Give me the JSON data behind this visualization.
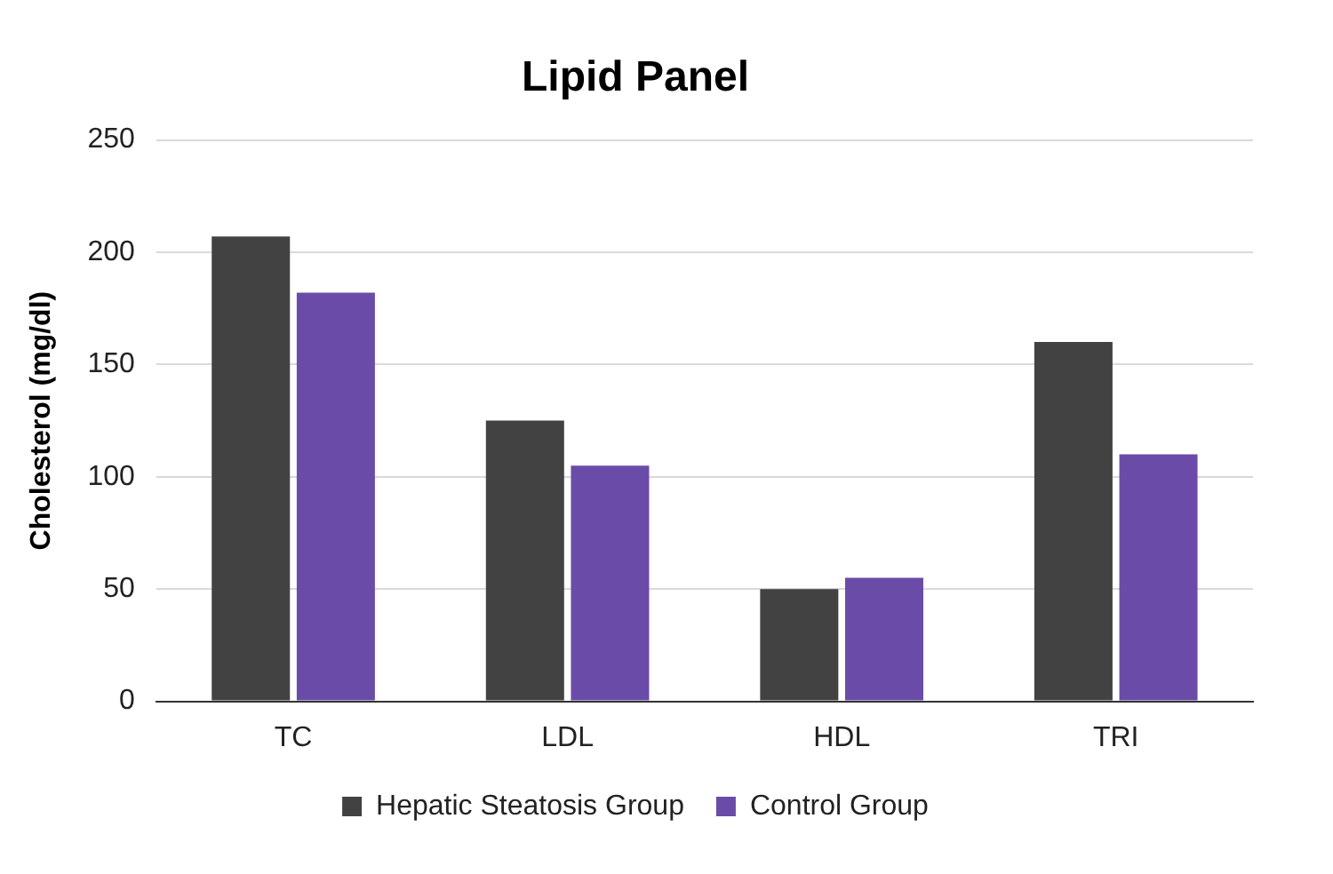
{
  "chart_data": {
    "type": "bar",
    "title": "Lipid Panel",
    "ylabel": "Cholesterol (mg/dl)",
    "categories": [
      "TC",
      "LDL",
      "HDL",
      "TRI"
    ],
    "series": [
      {
        "name": "Hepatic Steatosis Group",
        "color": "#424242",
        "values": [
          207,
          125,
          50,
          160
        ]
      },
      {
        "name": "Control Group",
        "color": "#6a4ca8",
        "values": [
          182,
          105,
          55,
          110
        ]
      }
    ],
    "ylim": [
      0,
      250
    ],
    "yticks": [
      0,
      50,
      100,
      150,
      200,
      250
    ],
    "grid": "y",
    "legend": "bottom"
  }
}
